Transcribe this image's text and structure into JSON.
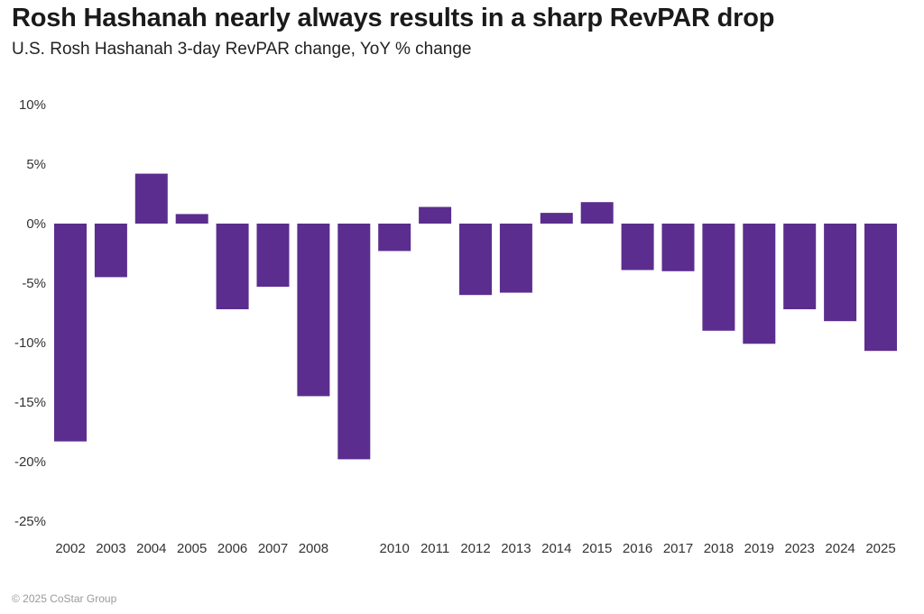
{
  "header": {
    "title": "Rosh Hashanah nearly always results in a sharp RevPAR drop",
    "subtitle": "U.S. Rosh Hashanah 3-day RevPAR change, YoY % change"
  },
  "footer": {
    "copyright": "© 2025 CoStar Group"
  },
  "colors": {
    "bar": "#5b2d8e"
  },
  "chart_data": {
    "type": "bar",
    "title": "Rosh Hashanah nearly always results in a sharp RevPAR drop",
    "subtitle": "U.S. Rosh Hashanah 3-day RevPAR change, YoY % change",
    "xlabel": "",
    "ylabel": "",
    "unit": "%",
    "ylim": [
      -25,
      10
    ],
    "yticks": [
      10,
      5,
      0,
      -5,
      -10,
      -15,
      -20,
      -25
    ],
    "ytick_labels": [
      "10%",
      "5%",
      "0%",
      "-5%",
      "-10%",
      "-15%",
      "-20%",
      "-25%"
    ],
    "grid": false,
    "legend": "none",
    "categories": [
      "2002",
      "2003",
      "2004",
      "2005",
      "2006",
      "2007",
      "2008",
      "",
      "2010",
      "2011",
      "2012",
      "2013",
      "2014",
      "2015",
      "2016",
      "2017",
      "2018",
      "2019",
      "2023",
      "2024",
      "2025"
    ],
    "values": [
      -18.3,
      -4.5,
      4.2,
      0.8,
      -7.2,
      -5.3,
      -14.5,
      -19.8,
      -2.3,
      1.4,
      -6.0,
      -5.8,
      0.9,
      1.8,
      -3.9,
      -4.0,
      -9.0,
      -10.1,
      -7.2,
      -8.2,
      -10.7
    ]
  }
}
